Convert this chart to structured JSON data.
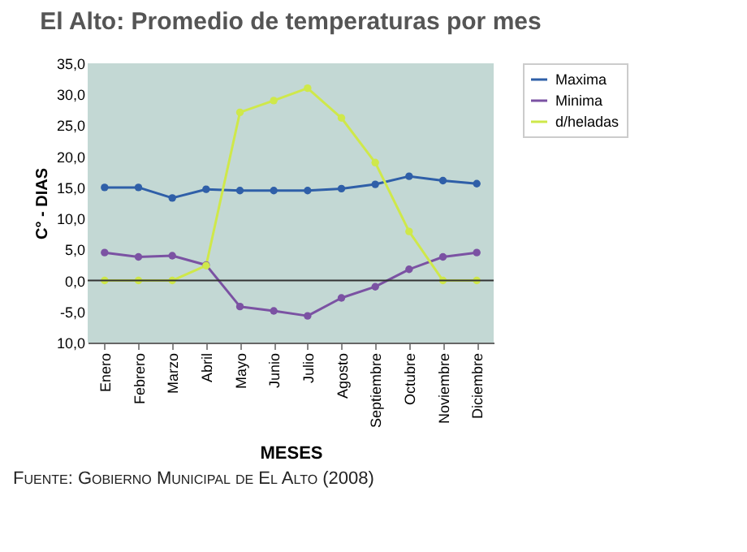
{
  "chart_data": {
    "type": "line",
    "title": "El Alto: Promedio de temperaturas por mes",
    "xlabel": "MESES",
    "ylabel": "C° - DIAS",
    "categories": [
      "Enero",
      "Febrero",
      "Marzo",
      "Abril",
      "Mayo",
      "Junio",
      "Julio",
      "Agosto",
      "Septiembre",
      "Octubre",
      "Noviembre",
      "Diciembre"
    ],
    "series": [
      {
        "name": "Maxima",
        "color": "#2f5fa8",
        "values": [
          15.0,
          15.0,
          13.3,
          14.7,
          14.5,
          14.5,
          14.5,
          14.8,
          15.5,
          16.8,
          16.1,
          15.6
        ]
      },
      {
        "name": "Minima",
        "color": "#7b52a3",
        "values": [
          4.5,
          3.8,
          4.0,
          2.5,
          -4.2,
          -4.9,
          -5.7,
          -2.8,
          -1.0,
          1.8,
          3.8,
          4.5
        ]
      },
      {
        "name": "d/heladas",
        "color": "#cfe84a",
        "values": [
          0,
          0,
          0,
          2.4,
          27.1,
          29.0,
          31.0,
          26.2,
          19.0,
          7.9,
          0,
          0
        ]
      }
    ],
    "ylim": [
      -10,
      35
    ],
    "yticks": [
      {
        "value": 35,
        "label": "35,0"
      },
      {
        "value": 30,
        "label": "30,0"
      },
      {
        "value": 25,
        "label": "25,0"
      },
      {
        "value": 20,
        "label": "20,0"
      },
      {
        "value": 15,
        "label": "15,0"
      },
      {
        "value": 10,
        "label": "10,0"
      },
      {
        "value": 5,
        "label": "5,0"
      },
      {
        "value": 0,
        "label": "0,0"
      },
      {
        "value": -5,
        "label": "-5,0"
      },
      {
        "value": -10,
        "label": "10,0"
      }
    ],
    "ref_lines": [
      {
        "axis": "y",
        "value": 0,
        "color": "#333333"
      }
    ],
    "legend": "right",
    "marker": "circle",
    "grid": false,
    "annotations": [
      "Fuente: Gobierno Municipal de El Alto (2008)"
    ]
  }
}
